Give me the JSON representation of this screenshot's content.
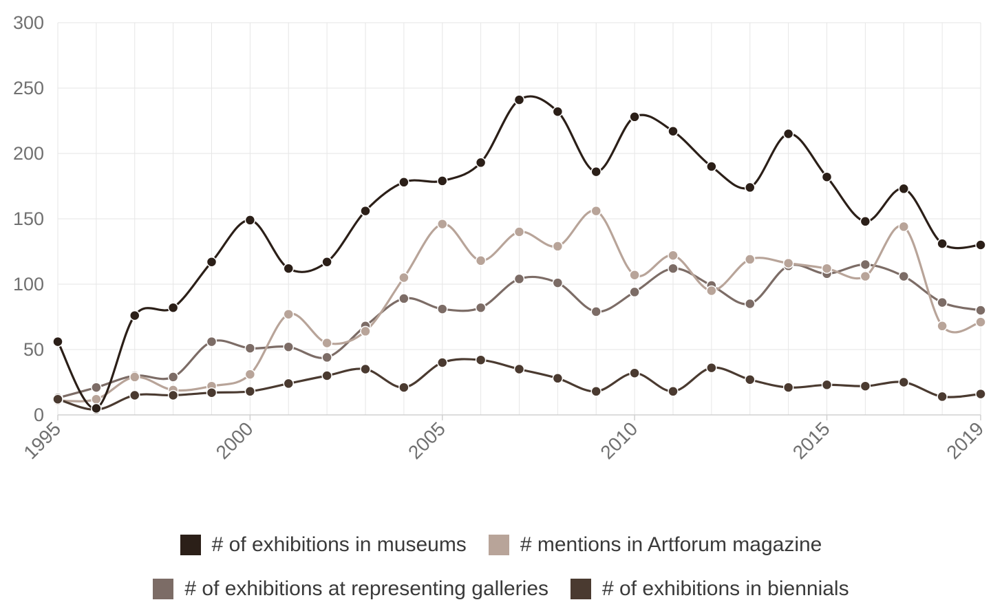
{
  "chart_data": {
    "type": "line",
    "x": [
      1995,
      1996,
      1997,
      1998,
      1999,
      2000,
      2001,
      2002,
      2003,
      2004,
      2005,
      2006,
      2007,
      2008,
      2009,
      2010,
      2011,
      2012,
      2013,
      2014,
      2015,
      2016,
      2017,
      2018,
      2019
    ],
    "x_tick_labels": [
      "1995",
      "2000",
      "2005",
      "2010",
      "2015",
      "2019"
    ],
    "y_tick_labels": [
      "0",
      "50",
      "100",
      "150",
      "200",
      "250",
      "300"
    ],
    "ylim": [
      0,
      300
    ],
    "grid": true,
    "legend_position": "bottom",
    "series": [
      {
        "name": "# of exhibitions in museums",
        "color": "#2b1f18",
        "values": [
          56,
          5,
          76,
          82,
          117,
          149,
          112,
          117,
          156,
          178,
          179,
          193,
          241,
          232,
          186,
          228,
          217,
          190,
          174,
          215,
          182,
          148,
          173,
          131,
          130
        ]
      },
      {
        "name": "# mentions in Artforum magazine",
        "color": "#b8a499",
        "values": [
          11,
          12,
          29,
          19,
          22,
          31,
          77,
          55,
          64,
          105,
          146,
          118,
          140,
          129,
          156,
          107,
          122,
          95,
          119,
          116,
          112,
          106,
          144,
          68,
          71
        ]
      },
      {
        "name": "# of exhibitions at representing galleries",
        "color": "#7c6c66",
        "values": [
          13,
          21,
          30,
          29,
          56,
          51,
          52,
          44,
          68,
          89,
          81,
          82,
          104,
          101,
          79,
          94,
          112,
          99,
          85,
          114,
          108,
          115,
          106,
          86,
          80
        ]
      },
      {
        "name": "# of exhibitions in biennials",
        "color": "#4a3a30",
        "values": [
          12,
          4,
          15,
          15,
          17,
          18,
          24,
          30,
          35,
          21,
          40,
          42,
          35,
          28,
          18,
          32,
          18,
          36,
          27,
          21,
          23,
          22,
          25,
          14,
          16
        ]
      }
    ]
  }
}
